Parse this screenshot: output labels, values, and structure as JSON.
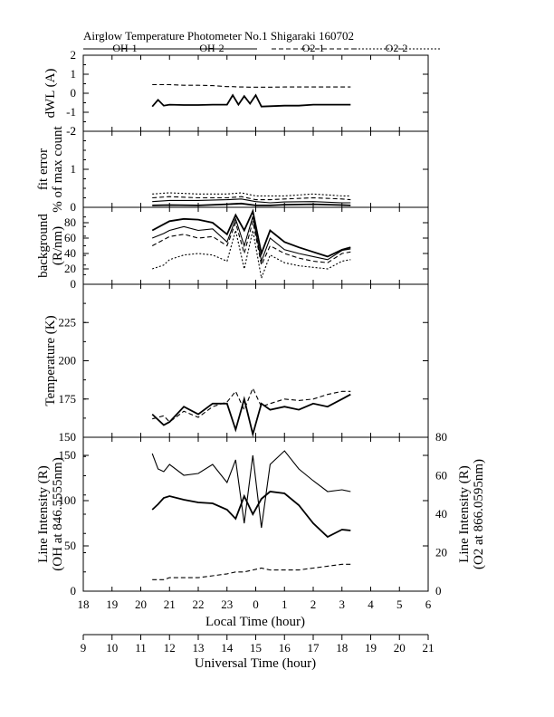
{
  "title": "Airglow Temperature Photometer No.1  Shigaraki  160702",
  "legend": [
    {
      "name": "OH-1",
      "dash": "solid"
    },
    {
      "name": "OH-2",
      "dash": "solid"
    },
    {
      "name": "O2-1",
      "dash": "dashed"
    },
    {
      "name": "O2-2",
      "dash": "dotted"
    }
  ],
  "xaxis_local": {
    "label": "Local Time (hour)",
    "ticks": [
      "18",
      "19",
      "20",
      "21",
      "22",
      "23",
      "0",
      "1",
      "2",
      "3",
      "4",
      "5",
      "6"
    ]
  },
  "xaxis_ut": {
    "label": "Universal Time (hour)",
    "ticks": [
      "9",
      "10",
      "11",
      "12",
      "13",
      "14",
      "15",
      "16",
      "17",
      "18",
      "19",
      "20",
      "21"
    ]
  },
  "chart_data": [
    {
      "type": "line",
      "panel": "dwl",
      "ylabel": "dWL (A)",
      "ylim": [
        -2,
        2
      ],
      "ytick_labels": [
        "2",
        "1",
        "0",
        "-1",
        "-2"
      ],
      "x": [
        20.4,
        20.6,
        20.8,
        21.0,
        21.5,
        22.0,
        22.5,
        23.0,
        23.2,
        23.4,
        23.6,
        23.8,
        24.0,
        24.2,
        24.5,
        25.0,
        25.5,
        26.0,
        26.5,
        27.0,
        27.3
      ],
      "series": [
        {
          "name": "OH-1",
          "values": [
            -0.7,
            -0.35,
            -0.65,
            -0.6,
            -0.62,
            -0.62,
            -0.6,
            -0.6,
            -0.1,
            -0.6,
            -0.15,
            -0.55,
            -0.1,
            -0.7,
            -0.68,
            -0.65,
            -0.65,
            -0.6,
            -0.6,
            -0.6,
            -0.6
          ]
        },
        {
          "name": "O2-1",
          "values": [
            0.45,
            0.45,
            0.45,
            0.45,
            0.42,
            0.42,
            0.4,
            0.35,
            0.35,
            0.33,
            0.33,
            0.32,
            0.32,
            0.32,
            0.32,
            0.33,
            0.33,
            0.33,
            0.33,
            0.33,
            0.33
          ]
        }
      ]
    },
    {
      "type": "line",
      "panel": "fit_error",
      "ylabel": "fit error",
      "ylabel2": "% of max count",
      "ylim": [
        0,
        2
      ],
      "ytick_labels": [
        "2",
        "1",
        "0"
      ],
      "x": [
        20.4,
        21.0,
        22.0,
        23.0,
        23.5,
        24.0,
        24.5,
        25.0,
        26.0,
        27.0,
        27.3
      ],
      "series": [
        {
          "name": "OH-1",
          "values": [
            0.05,
            0.06,
            0.05,
            0.08,
            0.1,
            0.05,
            0.05,
            0.07,
            0.08,
            0.06,
            0.05
          ]
        },
        {
          "name": "OH-2",
          "values": [
            0.15,
            0.18,
            0.18,
            0.2,
            0.22,
            0.15,
            0.12,
            0.14,
            0.15,
            0.12,
            0.12
          ]
        },
        {
          "name": "O2-1",
          "values": [
            0.25,
            0.28,
            0.25,
            0.25,
            0.28,
            0.2,
            0.2,
            0.22,
            0.25,
            0.22,
            0.2
          ]
        },
        {
          "name": "O2-2",
          "values": [
            0.35,
            0.38,
            0.35,
            0.35,
            0.38,
            0.3,
            0.3,
            0.3,
            0.35,
            0.3,
            0.3
          ]
        }
      ]
    },
    {
      "type": "line",
      "panel": "background",
      "ylabel": "background",
      "ylabel2": "(R/nm)",
      "ylim": [
        0,
        100
      ],
      "ytick_labels": [
        "80",
        "60",
        "40",
        "20",
        "0"
      ],
      "x": [
        20.4,
        20.8,
        21.0,
        21.5,
        22.0,
        22.5,
        23.0,
        23.3,
        23.6,
        23.9,
        24.2,
        24.5,
        25.0,
        25.5,
        26.0,
        26.5,
        27.0,
        27.3
      ],
      "series": [
        {
          "name": "OH-1",
          "values": [
            70,
            78,
            82,
            85,
            84,
            80,
            65,
            90,
            70,
            95,
            40,
            70,
            55,
            48,
            42,
            36,
            45,
            48
          ]
        },
        {
          "name": "OH-2",
          "values": [
            60,
            66,
            70,
            75,
            70,
            72,
            55,
            85,
            50,
            88,
            30,
            60,
            45,
            40,
            36,
            32,
            44,
            46
          ]
        },
        {
          "name": "O2-1",
          "values": [
            50,
            58,
            62,
            65,
            60,
            62,
            50,
            80,
            40,
            82,
            25,
            50,
            40,
            34,
            30,
            28,
            40,
            42
          ]
        },
        {
          "name": "O2-2",
          "values": [
            20,
            25,
            32,
            38,
            40,
            38,
            30,
            70,
            20,
            70,
            8,
            38,
            28,
            24,
            22,
            20,
            30,
            32
          ]
        }
      ]
    },
    {
      "type": "line",
      "panel": "temperature",
      "ylabel": "Temperature (K)",
      "ylim": [
        150,
        250
      ],
      "ytick_labels": [
        "225",
        "200",
        "175",
        "150"
      ],
      "x": [
        20.4,
        20.8,
        21.0,
        21.5,
        22.0,
        22.5,
        23.0,
        23.3,
        23.6,
        23.9,
        24.2,
        24.5,
        25.0,
        25.5,
        26.0,
        26.5,
        27.0,
        27.3
      ],
      "series": [
        {
          "name": "OH-1",
          "values": [
            165,
            158,
            160,
            170,
            165,
            172,
            172,
            155,
            175,
            152,
            172,
            168,
            170,
            168,
            172,
            170,
            175,
            178
          ]
        },
        {
          "name": "O2-1",
          "values": [
            162,
            164,
            160,
            167,
            163,
            170,
            173,
            180,
            168,
            182,
            170,
            172,
            175,
            174,
            175,
            178,
            180,
            180
          ]
        }
      ]
    },
    {
      "type": "line",
      "panel": "line_intensity",
      "ylabel": "Line Intensity (R)",
      "ylabel2": "(OH at 846.5555nm)",
      "ylabel_right": "Line Intensity (R)",
      "ylabel_right2": "(O2 at 866.0595nm)",
      "ylim": [
        0,
        170
      ],
      "ylim_right": [
        0,
        80
      ],
      "ytick_labels": [
        "150",
        "100",
        "50",
        "0"
      ],
      "ytick_labels_right": [
        "80",
        "60",
        "40",
        "20",
        "0"
      ],
      "x": [
        20.4,
        20.6,
        20.8,
        21.0,
        21.5,
        22.0,
        22.5,
        23.0,
        23.3,
        23.6,
        23.9,
        24.2,
        24.5,
        25.0,
        25.5,
        26.0,
        26.5,
        27.0,
        27.3
      ],
      "series": [
        {
          "name": "OH-1",
          "axis": "left",
          "values": [
            90,
            96,
            103,
            105,
            101,
            98,
            97,
            90,
            80,
            105,
            85,
            102,
            110,
            108,
            95,
            75,
            60,
            68,
            67
          ]
        },
        {
          "name": "OH-2",
          "axis": "left",
          "values": [
            152,
            135,
            132,
            140,
            128,
            130,
            140,
            120,
            145,
            75,
            150,
            70,
            140,
            155,
            135,
            122,
            110,
            112,
            110
          ]
        },
        {
          "name": "O2-1",
          "axis": "right",
          "values": [
            6,
            6,
            6,
            7,
            7,
            7,
            8,
            9,
            10,
            10,
            11,
            12,
            11,
            11,
            11,
            12,
            13,
            14,
            14
          ]
        }
      ]
    }
  ]
}
